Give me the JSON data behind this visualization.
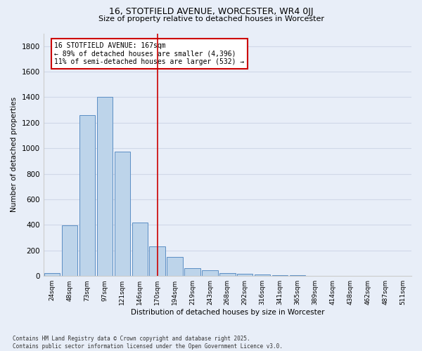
{
  "title1": "16, STOTFIELD AVENUE, WORCESTER, WR4 0JJ",
  "title2": "Size of property relative to detached houses in Worcester",
  "xlabel": "Distribution of detached houses by size in Worcester",
  "ylabel": "Number of detached properties",
  "categories": [
    "24sqm",
    "48sqm",
    "73sqm",
    "97sqm",
    "121sqm",
    "146sqm",
    "170sqm",
    "194sqm",
    "219sqm",
    "243sqm",
    "268sqm",
    "292sqm",
    "316sqm",
    "341sqm",
    "365sqm",
    "389sqm",
    "414sqm",
    "438sqm",
    "462sqm",
    "487sqm",
    "511sqm"
  ],
  "values": [
    22,
    398,
    1262,
    1400,
    975,
    418,
    230,
    150,
    60,
    43,
    25,
    15,
    10,
    5,
    5,
    0,
    0,
    0,
    0,
    0,
    0
  ],
  "bar_color": "#bdd4ea",
  "bar_edge_color": "#5b8ec4",
  "highlight_bar_index": 6,
  "highlight_line_color": "#cc0000",
  "annotation_text": "16 STOTFIELD AVENUE: 167sqm\n← 89% of detached houses are smaller (4,396)\n11% of semi-detached houses are larger (532) →",
  "annotation_box_color": "#ffffff",
  "annotation_box_edge_color": "#cc0000",
  "ylim": [
    0,
    1900
  ],
  "yticks": [
    0,
    200,
    400,
    600,
    800,
    1000,
    1200,
    1400,
    1600,
    1800
  ],
  "bg_color": "#e8eef8",
  "grid_color": "#d0d8e8",
  "footer": "Contains HM Land Registry data © Crown copyright and database right 2025.\nContains public sector information licensed under the Open Government Licence v3.0."
}
